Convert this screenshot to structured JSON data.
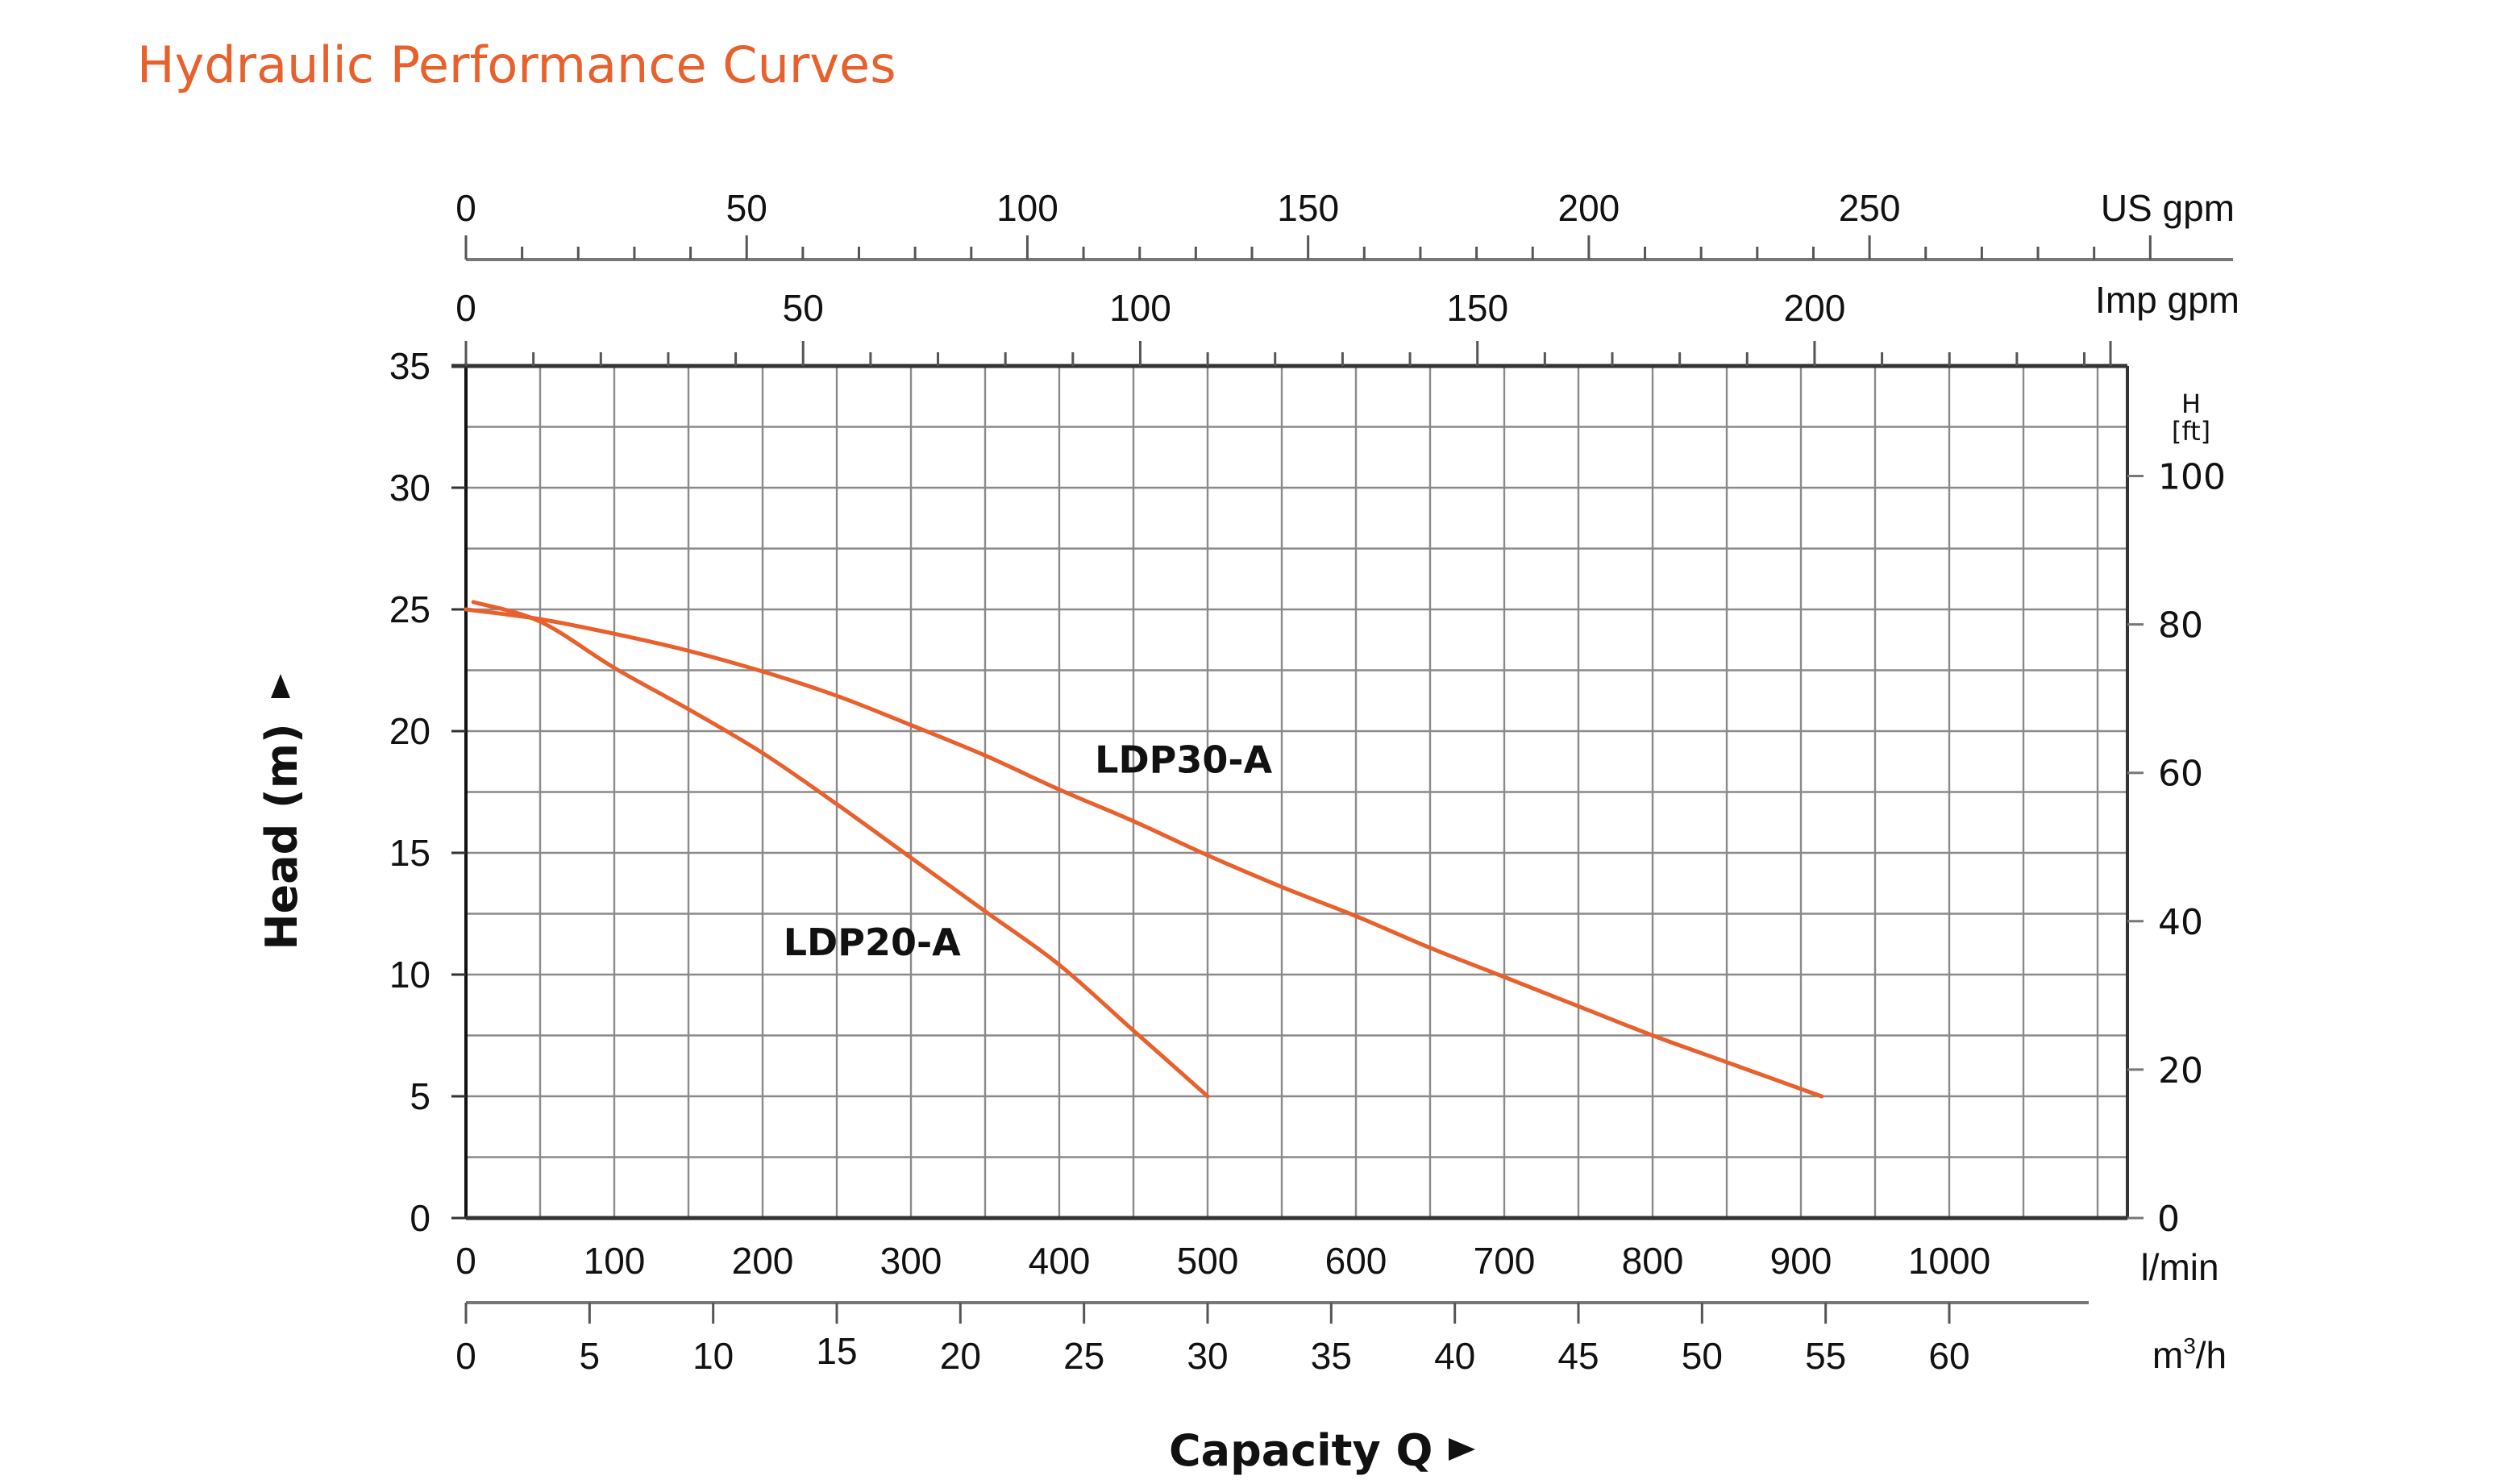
{
  "title": "Hydraulic Performance Curves",
  "colors": {
    "title": "#E8602C",
    "curve": "#E8602C",
    "axis": "#333333",
    "grid": "#8a8a8a",
    "text": "#111111"
  },
  "chart_data": {
    "type": "line",
    "title": "Hydraulic Performance Curves",
    "xlabel": "Capacity Q",
    "ylabel": "Head (m)",
    "xlim": [
      0,
      1120
    ],
    "ylim": [
      0,
      35
    ],
    "grid": true,
    "x_axis": {
      "unit": "l/min",
      "ticks": [
        0,
        100,
        200,
        300,
        400,
        500,
        600,
        700,
        800,
        900,
        1000
      ],
      "tick_labels": [
        "0",
        "100",
        "200",
        "300",
        "400",
        "500",
        "600",
        "700",
        "800",
        "900",
        "1000"
      ],
      "grid_step": 50
    },
    "y_axis": {
      "unit": "m",
      "ticks": [
        0,
        5,
        10,
        15,
        20,
        25,
        30,
        35
      ],
      "tick_labels": [
        "0",
        "5",
        "10",
        "15",
        "20",
        "25",
        "30",
        "35"
      ],
      "grid_step": 2.5
    },
    "secondary_axes": {
      "us_gpm": {
        "unit": "US gpm",
        "labeled_ticks": [
          0,
          50,
          100,
          150,
          200,
          250
        ],
        "tick_labels": [
          "0",
          "50",
          "100",
          "150",
          "200",
          "250"
        ],
        "major_step": 50,
        "minor_step": 10,
        "max": 300,
        "l_per_min_per_unit": 3.785
      },
      "imp_gpm": {
        "unit": "Imp gpm",
        "labeled_ticks": [
          0,
          50,
          100,
          150,
          200
        ],
        "tick_labels": [
          "0",
          "50",
          "100",
          "150",
          "200"
        ],
        "major_step": 50,
        "minor_step": 10,
        "max": 240,
        "l_per_min_per_unit": 4.546
      },
      "m3h": {
        "unit": "m³/h",
        "unit_base": "m",
        "unit_sup": "3",
        "unit_tail": "/h",
        "labeled_ticks": [
          0,
          5,
          10,
          15,
          20,
          25,
          30,
          35,
          40,
          45,
          50,
          55,
          60
        ],
        "tick_labels": [
          "0",
          "5",
          "10",
          "15",
          "20",
          "25",
          "30",
          "35",
          "40",
          "45",
          "50",
          "55",
          "60"
        ],
        "l_per_min_per_unit": 16.6667
      },
      "head_ft": {
        "unit_top": "H",
        "unit_bottom": "[ft]",
        "ticks": [
          0,
          20,
          40,
          60,
          80,
          100
        ],
        "tick_labels": [
          "0",
          "20",
          "40",
          "60",
          "80",
          "100"
        ],
        "m_per_unit": 0.3048
      }
    },
    "series": [
      {
        "name": "LDP20-A",
        "label_at": {
          "x": 214,
          "y": 10.8
        },
        "x": [
          5,
          50,
          100,
          150,
          200,
          250,
          300,
          350,
          400,
          450,
          500
        ],
        "y": [
          25.3,
          24.5,
          22.6,
          20.9,
          19.1,
          17.0,
          14.8,
          12.6,
          10.4,
          7.7,
          5.0
        ]
      },
      {
        "name": "LDP30-A",
        "label_at": {
          "x": 424,
          "y": 18.3
        },
        "x": [
          0,
          50,
          100,
          150,
          200,
          250,
          300,
          350,
          400,
          450,
          500,
          550,
          600,
          650,
          700,
          750,
          800,
          850,
          900,
          914
        ],
        "y": [
          25.0,
          24.6,
          24.0,
          23.3,
          22.45,
          21.45,
          20.25,
          19.0,
          17.6,
          16.3,
          14.9,
          13.6,
          12.4,
          11.1,
          9.9,
          8.7,
          7.5,
          6.4,
          5.3,
          5.0
        ]
      }
    ]
  }
}
